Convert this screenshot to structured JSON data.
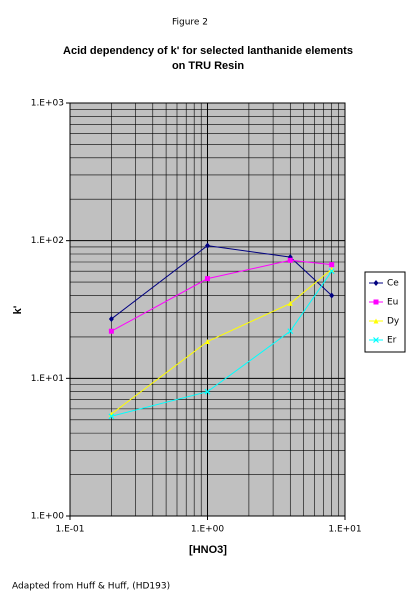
{
  "figure_label": "Figure 2",
  "caption": "Adapted from Huff & Huff, (HD193)",
  "chart_data": {
    "type": "line",
    "title": [
      "Acid dependency of k' for selected lanthanide elements",
      "on TRU Resin"
    ],
    "x_label": "[HNO3]",
    "y_label": "k'",
    "x_log": true,
    "y_log": true,
    "grid": true,
    "minor_grid": true,
    "plot_background": "#c0c0c0",
    "legend_position": "right",
    "xlim": [
      0.1,
      10
    ],
    "xticks": [
      {
        "value": 0.1,
        "label": "1.E-01"
      },
      {
        "value": 1,
        "label": "1.E+00"
      },
      {
        "value": 10,
        "label": "1.E+01"
      }
    ],
    "ylim": [
      1,
      1000
    ],
    "yticks": [
      {
        "value": 1,
        "label": "1.E+00"
      },
      {
        "value": 10,
        "label": "1.E+01"
      },
      {
        "value": 100,
        "label": "1.E+02"
      },
      {
        "value": 1000,
        "label": "1.E+03"
      }
    ],
    "x": [
      0.2,
      1,
      4,
      8
    ],
    "series": [
      {
        "name": "Ce",
        "color": "#000080",
        "marker": "diamond",
        "values": [
          27,
          92,
          76,
          40
        ]
      },
      {
        "name": "Eu",
        "color": "#ff00ff",
        "marker": "square",
        "values": [
          22,
          53,
          72,
          67
        ]
      },
      {
        "name": "Dy",
        "color": "#ffff00",
        "marker": "triangle",
        "values": [
          5.5,
          18.5,
          35,
          62
        ]
      },
      {
        "name": "Er",
        "color": "#00ffff",
        "marker": "cross",
        "values": [
          5.3,
          8,
          22,
          60
        ]
      }
    ]
  }
}
